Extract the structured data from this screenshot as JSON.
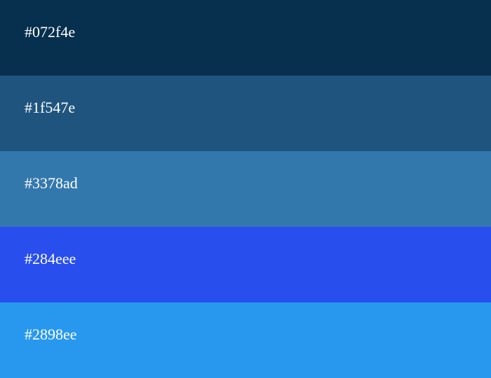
{
  "palette": {
    "swatches": [
      {
        "label": "#072f4e",
        "color": "#072f4e"
      },
      {
        "label": "#1f547e",
        "color": "#1f547e"
      },
      {
        "label": "#3378ad",
        "color": "#3378ad"
      },
      {
        "label": "#284eee",
        "color": "#284eee"
      },
      {
        "label": "#2898ee",
        "color": "#2898ee"
      }
    ],
    "text_color": "#ffffff"
  }
}
